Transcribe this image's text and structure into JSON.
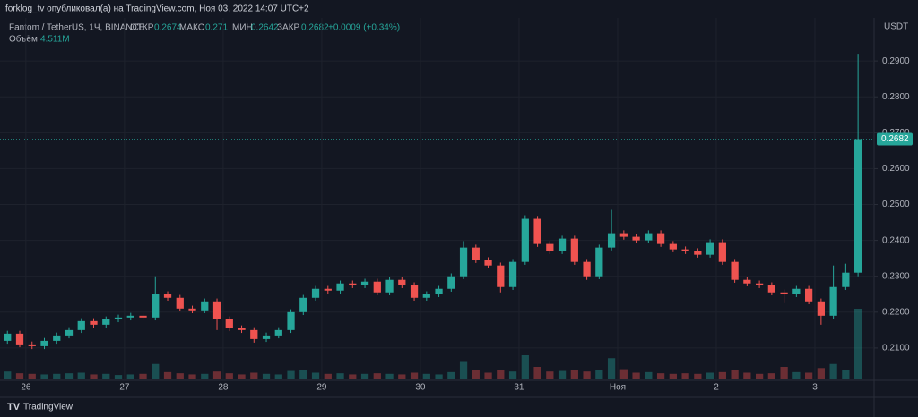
{
  "header": {
    "publisher": "forklog_tv опубликовал(а) на TradingView.com, Ноя 03, 2022 14:07 UTC+2",
    "symbol": "Fantom / TetherUS, 1Ч, BINANCE",
    "open_label": "ОТКР",
    "open": 0.2674,
    "high_label": "МАКС",
    "high": 0.271,
    "low_label": "МИН",
    "low": 0.2642,
    "close_label": "ЗАКР",
    "close": 0.2682,
    "change": "+0.0009 (+0.34%)",
    "volume_label": "Объём",
    "volume": "4.511M",
    "currency": "USDT",
    "brand": "TradingView"
  },
  "chart_data": {
    "type": "candlestick",
    "up_color": "#26a69a",
    "down_color": "#ef5350",
    "open": [
      0.212,
      0.214,
      0.211,
      0.2105,
      0.212,
      0.2135,
      0.215,
      0.2175,
      0.2165,
      0.218,
      0.2185,
      0.219,
      0.2185,
      0.225,
      0.224,
      0.221,
      0.2205,
      0.223,
      0.218,
      0.2155,
      0.215,
      0.2125,
      0.2135,
      0.215,
      0.22,
      0.224,
      0.2265,
      0.226,
      0.228,
      0.2275,
      0.2285,
      0.2255,
      0.229,
      0.2275,
      0.224,
      0.225,
      0.2265,
      0.23,
      0.238,
      0.2345,
      0.233,
      0.227,
      0.234,
      0.246,
      0.239,
      0.237,
      0.2405,
      0.234,
      0.23,
      0.238,
      0.242,
      0.241,
      0.24,
      0.242,
      0.239,
      0.2375,
      0.237,
      0.236,
      0.2395,
      0.234,
      0.229,
      0.228,
      0.2275,
      0.2255,
      0.225,
      0.2265,
      0.223,
      0.219,
      0.227,
      0.231
    ],
    "high": [
      0.2148,
      0.2148,
      0.2118,
      0.2128,
      0.2143,
      0.2158,
      0.2183,
      0.2183,
      0.2188,
      0.2193,
      0.2198,
      0.2198,
      0.23,
      0.2258,
      0.2248,
      0.2218,
      0.2238,
      0.2238,
      0.2188,
      0.2163,
      0.2158,
      0.2143,
      0.2158,
      0.2208,
      0.2248,
      0.2273,
      0.2273,
      0.2288,
      0.2288,
      0.2293,
      0.2293,
      0.2298,
      0.2298,
      0.2283,
      0.2258,
      0.2273,
      0.2308,
      0.2398,
      0.2388,
      0.2353,
      0.2338,
      0.2348,
      0.247,
      0.2468,
      0.2398,
      0.2413,
      0.2413,
      0.2348,
      0.2388,
      0.2485,
      0.2428,
      0.2418,
      0.2428,
      0.2428,
      0.2398,
      0.2383,
      0.2378,
      0.2403,
      0.2403,
      0.2348,
      0.2298,
      0.2288,
      0.2283,
      0.2263,
      0.2273,
      0.2273,
      0.2238,
      0.233,
      0.2335,
      0.292
    ],
    "low": [
      0.2112,
      0.2102,
      0.2097,
      0.2097,
      0.2112,
      0.2127,
      0.2142,
      0.2157,
      0.2157,
      0.2172,
      0.2177,
      0.2177,
      0.2177,
      0.2232,
      0.2202,
      0.2197,
      0.2197,
      0.215,
      0.2147,
      0.2142,
      0.2115,
      0.2117,
      0.2127,
      0.2142,
      0.2192,
      0.2232,
      0.2252,
      0.2252,
      0.2267,
      0.2267,
      0.2247,
      0.2247,
      0.2267,
      0.2232,
      0.2232,
      0.2242,
      0.2257,
      0.2292,
      0.2337,
      0.2322,
      0.2255,
      0.2262,
      0.2332,
      0.2382,
      0.2362,
      0.2362,
      0.2332,
      0.229,
      0.2292,
      0.2372,
      0.2402,
      0.2392,
      0.2392,
      0.2382,
      0.2367,
      0.2362,
      0.2352,
      0.2352,
      0.2332,
      0.2282,
      0.2272,
      0.2267,
      0.2247,
      0.2225,
      0.2242,
      0.2222,
      0.2165,
      0.2182,
      0.2262,
      0.23
    ],
    "close": [
      0.214,
      0.211,
      0.2105,
      0.212,
      0.2135,
      0.215,
      0.2175,
      0.2165,
      0.218,
      0.2185,
      0.219,
      0.2185,
      0.225,
      0.224,
      0.221,
      0.2205,
      0.223,
      0.218,
      0.2155,
      0.215,
      0.2125,
      0.2135,
      0.215,
      0.22,
      0.224,
      0.2265,
      0.226,
      0.228,
      0.2275,
      0.2285,
      0.2255,
      0.229,
      0.2275,
      0.224,
      0.225,
      0.2265,
      0.23,
      0.238,
      0.2345,
      0.233,
      0.227,
      0.234,
      0.246,
      0.239,
      0.237,
      0.2405,
      0.234,
      0.23,
      0.238,
      0.242,
      0.241,
      0.24,
      0.242,
      0.239,
      0.2375,
      0.237,
      0.236,
      0.2395,
      0.234,
      0.229,
      0.228,
      0.2275,
      0.2255,
      0.225,
      0.2265,
      0.223,
      0.219,
      0.227,
      0.231,
      0.2682
    ],
    "volumes": [
      1.2,
      0.9,
      0.8,
      0.7,
      0.8,
      0.9,
      1.0,
      0.7,
      0.8,
      0.6,
      0.7,
      0.8,
      2.5,
      1.1,
      0.9,
      0.7,
      0.8,
      1.2,
      0.9,
      0.7,
      1.0,
      0.8,
      0.7,
      1.3,
      1.5,
      1.0,
      0.8,
      0.9,
      0.7,
      0.8,
      0.9,
      0.8,
      0.7,
      1.0,
      0.8,
      0.7,
      1.1,
      3.0,
      1.5,
      1.0,
      1.4,
      1.2,
      4.0,
      2.0,
      1.2,
      1.3,
      1.5,
      1.2,
      1.4,
      3.5,
      1.6,
      1.0,
      1.1,
      0.9,
      0.8,
      0.9,
      0.8,
      1.0,
      1.1,
      1.5,
      1.0,
      0.8,
      0.9,
      2.0,
      1.1,
      1.0,
      1.8,
      2.5,
      1.5,
      12.0
    ],
    "last_price": 0.2682,
    "xlim": [
      -0.6,
      70.3
    ],
    "ylim": [
      0.201,
      0.302
    ],
    "yticks": [
      {
        "value": 0.21,
        "label": "0.2100"
      },
      {
        "value": 0.22,
        "label": "0.2200"
      },
      {
        "value": 0.23,
        "label": "0.2300"
      },
      {
        "value": 0.24,
        "label": "0.2400"
      },
      {
        "value": 0.25,
        "label": "0.2500"
      },
      {
        "value": 0.26,
        "label": "0.2600"
      },
      {
        "value": 0.27,
        "label": "0.2700"
      },
      {
        "value": 0.28,
        "label": "0.2800"
      },
      {
        "value": 0.29,
        "label": "0.2900"
      }
    ],
    "xticks": [
      {
        "value": 1.5,
        "label": "26"
      },
      {
        "value": 9.5,
        "label": "27"
      },
      {
        "value": 17.5,
        "label": "28"
      },
      {
        "value": 25.5,
        "label": "29"
      },
      {
        "value": 33.5,
        "label": "30"
      },
      {
        "value": 41.5,
        "label": "31"
      },
      {
        "value": 49.5,
        "label": "Ноя"
      },
      {
        "value": 57.5,
        "label": "2"
      },
      {
        "value": 65.5,
        "label": "3"
      }
    ],
    "grid": true
  }
}
